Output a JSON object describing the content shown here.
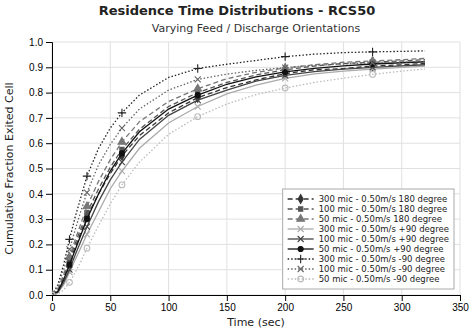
{
  "chart_data": {
    "type": "line",
    "title": "Residence Time Distributions - RCS50",
    "subtitle": "Varying Feed / Discharge Orientations",
    "xlabel": "Time (sec)",
    "ylabel": "Cumulative Fraction Exited Cell",
    "x": [
      0,
      5,
      10,
      15,
      20,
      25,
      30,
      40,
      50,
      60,
      75,
      100,
      125,
      150,
      175,
      200,
      225,
      250,
      275,
      300,
      320
    ],
    "xlim": [
      0,
      350
    ],
    "ylim": [
      0,
      1.0
    ],
    "xticks": [
      0,
      50,
      100,
      150,
      200,
      250,
      300,
      350
    ],
    "yticks": [
      {
        "value": 0,
        "label": "0.0"
      },
      0.1,
      0.2,
      0.3,
      0.4,
      0.5,
      0.6,
      0.7,
      0.8,
      0.9,
      {
        "value": 1.0,
        "label": "1.0"
      }
    ],
    "grid": true,
    "legend": "lower right",
    "series": [
      {
        "name": "300 mic - 0.50m/s 180 degree",
        "color": "#333333",
        "line_style": "dashed",
        "marker": "diamond",
        "values": [
          0,
          0.02,
          0.07,
          0.13,
          0.19,
          0.25,
          0.31,
          0.4,
          0.48,
          0.55,
          0.63,
          0.72,
          0.78,
          0.82,
          0.85,
          0.875,
          0.89,
          0.895,
          0.905,
          0.91,
          0.915
        ]
      },
      {
        "name": "100 mic - 0.50m/s 180 degree",
        "color": "#555555",
        "line_style": "dashed",
        "marker": "square",
        "values": [
          0,
          0.02,
          0.075,
          0.14,
          0.205,
          0.265,
          0.325,
          0.42,
          0.505,
          0.575,
          0.655,
          0.745,
          0.8,
          0.84,
          0.87,
          0.89,
          0.905,
          0.915,
          0.92,
          0.925,
          0.93
        ]
      },
      {
        "name": "50 mic - 0.50m/s 180 degree",
        "color": "#777777",
        "line_style": "dashed",
        "marker": "triangle",
        "values": [
          0,
          0.025,
          0.08,
          0.15,
          0.22,
          0.285,
          0.35,
          0.45,
          0.535,
          0.605,
          0.685,
          0.765,
          0.815,
          0.855,
          0.88,
          0.897,
          0.91,
          0.92,
          0.925,
          0.93,
          0.935
        ]
      },
      {
        "name": "300 mic - 0.50m/s +90 degree",
        "color": "#aaaaaa",
        "line_style": "solid",
        "marker": "x",
        "values": [
          0,
          0.01,
          0.04,
          0.09,
          0.14,
          0.19,
          0.24,
          0.33,
          0.42,
          0.49,
          0.58,
          0.68,
          0.745,
          0.795,
          0.83,
          0.856,
          0.874,
          0.885,
          0.893,
          0.9,
          0.905
        ]
      },
      {
        "name": "100 mic - 0.50m/s +90 degree",
        "color": "#444444",
        "line_style": "solid",
        "marker": "x",
        "values": [
          0,
          0.01,
          0.05,
          0.1,
          0.16,
          0.215,
          0.27,
          0.37,
          0.455,
          0.525,
          0.615,
          0.71,
          0.77,
          0.81,
          0.845,
          0.868,
          0.883,
          0.893,
          0.9,
          0.906,
          0.91
        ]
      },
      {
        "name": "50 mic - 0.50m/s +90 degree",
        "color": "#111111",
        "line_style": "solid",
        "marker": "circle",
        "values": [
          0,
          0.015,
          0.06,
          0.12,
          0.18,
          0.24,
          0.3,
          0.4,
          0.49,
          0.56,
          0.645,
          0.735,
          0.79,
          0.833,
          0.862,
          0.882,
          0.896,
          0.906,
          0.913,
          0.918,
          0.922
        ]
      },
      {
        "name": "300 mic - 0.50m/s -90 degree",
        "color": "#222222",
        "line_style": "dotted",
        "marker": "plus",
        "values": [
          0,
          0.04,
          0.12,
          0.22,
          0.31,
          0.39,
          0.47,
          0.58,
          0.66,
          0.72,
          0.79,
          0.86,
          0.895,
          0.912,
          0.927,
          0.942,
          0.952,
          0.958,
          0.961,
          0.963,
          0.965
        ]
      },
      {
        "name": "100 mic - 0.50m/s -90 degree",
        "color": "#666666",
        "line_style": "dotted",
        "marker": "x",
        "values": [
          0,
          0.035,
          0.1,
          0.18,
          0.26,
          0.335,
          0.405,
          0.515,
          0.595,
          0.66,
          0.735,
          0.81,
          0.852,
          0.873,
          0.888,
          0.899,
          0.908,
          0.913,
          0.918,
          0.921,
          0.924
        ]
      },
      {
        "name": "50 mic - 0.50m/s -90 degree",
        "color": "#bbbbbb",
        "line_style": "dotted",
        "marker": "circle-open",
        "values": [
          0,
          0.005,
          0.02,
          0.05,
          0.09,
          0.135,
          0.185,
          0.275,
          0.36,
          0.435,
          0.525,
          0.635,
          0.705,
          0.755,
          0.792,
          0.818,
          0.84,
          0.857,
          0.872,
          0.885,
          0.893
        ]
      }
    ]
  }
}
